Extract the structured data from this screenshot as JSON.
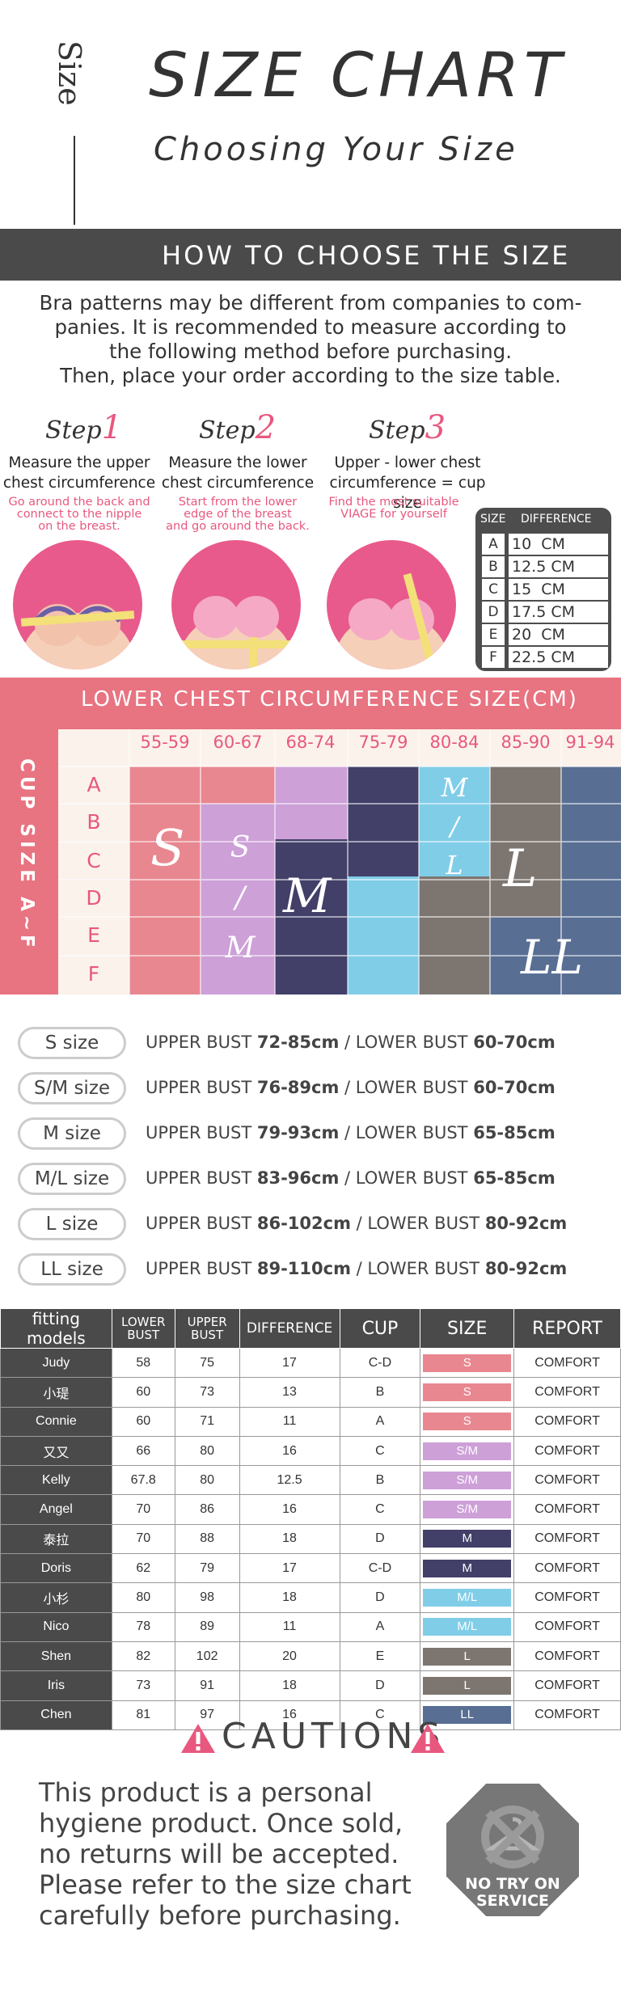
{
  "header": {
    "side_word": "Size",
    "title": "SIZE CHART",
    "subtitle": "Choosing Your Size"
  },
  "how": {
    "heading": "HOW TO CHOOSE THE SIZE",
    "intro": [
      "Bra patterns may be different from companies to com-",
      "panies. It is recommended to measure according to",
      "the following method before purchasing.",
      "Then, place your order according to the size table."
    ]
  },
  "steps": [
    {
      "label": "Step",
      "num": "1",
      "title": [
        "Measure the upper",
        "chest circumference"
      ],
      "sub": [
        "Go around the back and",
        "connect to the nipple",
        "on the breast."
      ]
    },
    {
      "label": "Step",
      "num": "2",
      "title": [
        "Measure the lower",
        "chest circumference"
      ],
      "sub": [
        "Start from the lower",
        "edge of the breast",
        "and go around the back."
      ]
    },
    {
      "label": "Step",
      "num": "3",
      "title": [
        "Upper - lower chest",
        "circumference = cup size"
      ],
      "sub": [
        "Find the most suitable",
        "VIAGE for yourself"
      ]
    }
  ],
  "difference_table": {
    "headers": [
      "SIZE",
      "DIFFERENCE"
    ],
    "rows": [
      {
        "size": "A",
        "value": "10",
        "unit": "CM"
      },
      {
        "size": "B",
        "value": "12.5",
        "unit": "CM"
      },
      {
        "size": "C",
        "value": "15",
        "unit": "CM"
      },
      {
        "size": "D",
        "value": "17.5",
        "unit": "CM"
      },
      {
        "size": "E",
        "value": "20",
        "unit": "CM"
      },
      {
        "size": "F",
        "value": "22.5",
        "unit": "CM"
      }
    ]
  },
  "grid": {
    "title": "LOWER CHEST CIRCUMFERENCE SIZE(CM)",
    "side_label": "CUP SIZE A~F",
    "columns": [
      "55-59",
      "60-67",
      "68-74",
      "75-79",
      "80-84",
      "85-90",
      "91-94"
    ],
    "rows": [
      "A",
      "B",
      "C",
      "D",
      "E",
      "F"
    ],
    "zones": [
      {
        "label": "S",
        "color": "#e8878f"
      },
      {
        "label": "S/M",
        "color": "#cda0d8"
      },
      {
        "label": "M",
        "color": "#423f68"
      },
      {
        "label": "M/L",
        "color": "#80cde8"
      },
      {
        "label": "L",
        "color": "#7d7670"
      },
      {
        "label": "LL",
        "color": "#586e93"
      }
    ]
  },
  "size_list": [
    {
      "pill": "S size",
      "upper_label": "UPPER BUST",
      "upper": "72-85cm",
      "lower_label": "LOWER BUST",
      "lower": "60-70cm"
    },
    {
      "pill": "S/M size",
      "upper_label": "UPPER BUST",
      "upper": "76-89cm",
      "lower_label": "LOWER BUST",
      "lower": "60-70cm"
    },
    {
      "pill": "M size",
      "upper_label": "UPPER BUST",
      "upper": "79-93cm",
      "lower_label": "LOWER BUST",
      "lower": "65-85cm"
    },
    {
      "pill": "M/L size",
      "upper_label": "UPPER BUST",
      "upper": "83-96cm",
      "lower_label": "LOWER BUST",
      "lower": "65-85cm"
    },
    {
      "pill": "L size",
      "upper_label": "UPPER BUST",
      "upper": "86-102cm",
      "lower_label": "LOWER BUST",
      "lower": "80-92cm"
    },
    {
      "pill": "LL size",
      "upper_label": "UPPER BUST",
      "upper": "89-110cm",
      "lower_label": "LOWER BUST",
      "lower": "80-92cm"
    }
  ],
  "fitting": {
    "headers": [
      "fitting models",
      "LOWER BUST",
      "UPPER BUST",
      "DIFFERENCE",
      "CUP",
      "SIZE",
      "REPORT"
    ],
    "rows": [
      {
        "name": "Judy",
        "lower": "58",
        "upper": "75",
        "diff": "17",
        "cup": "C-D",
        "size": "S",
        "report": "COMFORT"
      },
      {
        "name": "小瑅",
        "lower": "60",
        "upper": "73",
        "diff": "13",
        "cup": "B",
        "size": "S",
        "report": "COMFORT"
      },
      {
        "name": "Connie",
        "lower": "60",
        "upper": "71",
        "diff": "11",
        "cup": "A",
        "size": "S",
        "report": "COMFORT"
      },
      {
        "name": "又又",
        "lower": "66",
        "upper": "80",
        "diff": "16",
        "cup": "C",
        "size": "S/M",
        "report": "COMFORT"
      },
      {
        "name": "Kelly",
        "lower": "67.8",
        "upper": "80",
        "diff": "12.5",
        "cup": "B",
        "size": "S/M",
        "report": "COMFORT"
      },
      {
        "name": "Angel",
        "lower": "70",
        "upper": "86",
        "diff": "16",
        "cup": "C",
        "size": "S/M",
        "report": "COMFORT"
      },
      {
        "name": "泰拉",
        "lower": "70",
        "upper": "88",
        "diff": "18",
        "cup": "D",
        "size": "M",
        "report": "COMFORT"
      },
      {
        "name": "Doris",
        "lower": "62",
        "upper": "79",
        "diff": "17",
        "cup": "C-D",
        "size": "M",
        "report": "COMFORT"
      },
      {
        "name": "小杉",
        "lower": "80",
        "upper": "98",
        "diff": "18",
        "cup": "D",
        "size": "M/L",
        "report": "COMFORT"
      },
      {
        "name": "Nico",
        "lower": "78",
        "upper": "89",
        "diff": "11",
        "cup": "A",
        "size": "M/L",
        "report": "COMFORT"
      },
      {
        "name": "Shen",
        "lower": "82",
        "upper": "102",
        "diff": "20",
        "cup": "E",
        "size": "L",
        "report": "COMFORT"
      },
      {
        "name": "Iris",
        "lower": "73",
        "upper": "91",
        "diff": "18",
        "cup": "D",
        "size": "L",
        "report": "COMFORT"
      },
      {
        "name": "Chen",
        "lower": "81",
        "upper": "97",
        "diff": "16",
        "cup": "C",
        "size": "LL",
        "report": "COMFORT"
      }
    ],
    "size_colors": {
      "S": "#e8878f",
      "S/M": "#cda0d8",
      "M": "#423f68",
      "M/L": "#80cde8",
      "L": "#7d7670",
      "LL": "#586e93"
    }
  },
  "cautions": {
    "heading": "CAUTIONS",
    "text": [
      "This product is a personal",
      "hygiene product. Once sold,",
      "no returns will be accepted.",
      "Please refer to the size chart",
      "carefully before purchasing."
    ],
    "badge": [
      "NO TRY ON",
      "SERVICE"
    ]
  },
  "colors": {
    "accent": "#e8587e",
    "header_bar": "#4a4a4a",
    "grid_band": "#e87381"
  }
}
